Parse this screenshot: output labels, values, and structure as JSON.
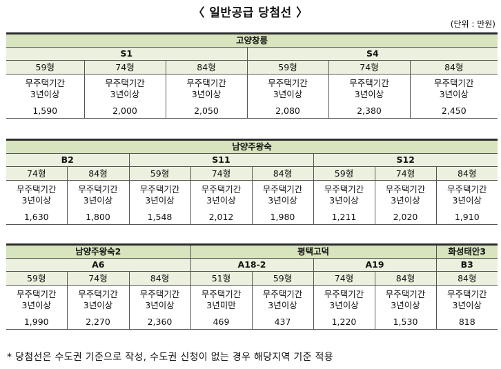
{
  "title": "〈 일반공급 당첨선 〉",
  "unit": "(단위 : 만원)",
  "condition_line1": "무주택기간",
  "table1": {
    "group": "고양창릉",
    "sites": [
      "S1",
      "S4"
    ],
    "types": [
      "59형",
      "74형",
      "84형",
      "59형",
      "74형",
      "84형"
    ],
    "periods": [
      "3년이상",
      "3년이상",
      "3년이상",
      "3년이상",
      "3년이상",
      "3년이상"
    ],
    "values": [
      "1,590",
      "2,000",
      "2,050",
      "2,080",
      "2,380",
      "2,450"
    ]
  },
  "table2": {
    "group": "남양주왕숙",
    "sites": [
      "B2",
      "S11",
      "S12"
    ],
    "types": [
      "74형",
      "84형",
      "59형",
      "74형",
      "84형",
      "59형",
      "74형",
      "84형"
    ],
    "periods": [
      "3년이상",
      "3년이상",
      "3년이상",
      "3년이상",
      "3년이상",
      "3년이상",
      "3년이상",
      "3년이상"
    ],
    "values": [
      "1,630",
      "1,800",
      "1,548",
      "2,012",
      "1,980",
      "1,211",
      "2,020",
      "1,910"
    ]
  },
  "table3": {
    "groups": [
      "남양주왕숙2",
      "평택고덕",
      "화성태안3"
    ],
    "sites": [
      "A6",
      "A18-2",
      "A19",
      "B3"
    ],
    "types": [
      "59형",
      "74형",
      "84형",
      "51형",
      "59형",
      "74형",
      "84형",
      "84형"
    ],
    "periods": [
      "3년이상",
      "3년이상",
      "3년이상",
      "3년미만",
      "3년이상",
      "3년이상",
      "3년이상",
      "3년이상"
    ],
    "values": [
      "1,990",
      "2,270",
      "2,360",
      "469",
      "437",
      "1,220",
      "1,530",
      "818"
    ]
  },
  "footnote": "* 당첨선은 수도권 기준으로 작성, 수도권 신청이 없는 경우 해당지역 기준 적용",
  "colors": {
    "header_green": "#d7e4bd",
    "subheader_green": "#ebf1de"
  }
}
